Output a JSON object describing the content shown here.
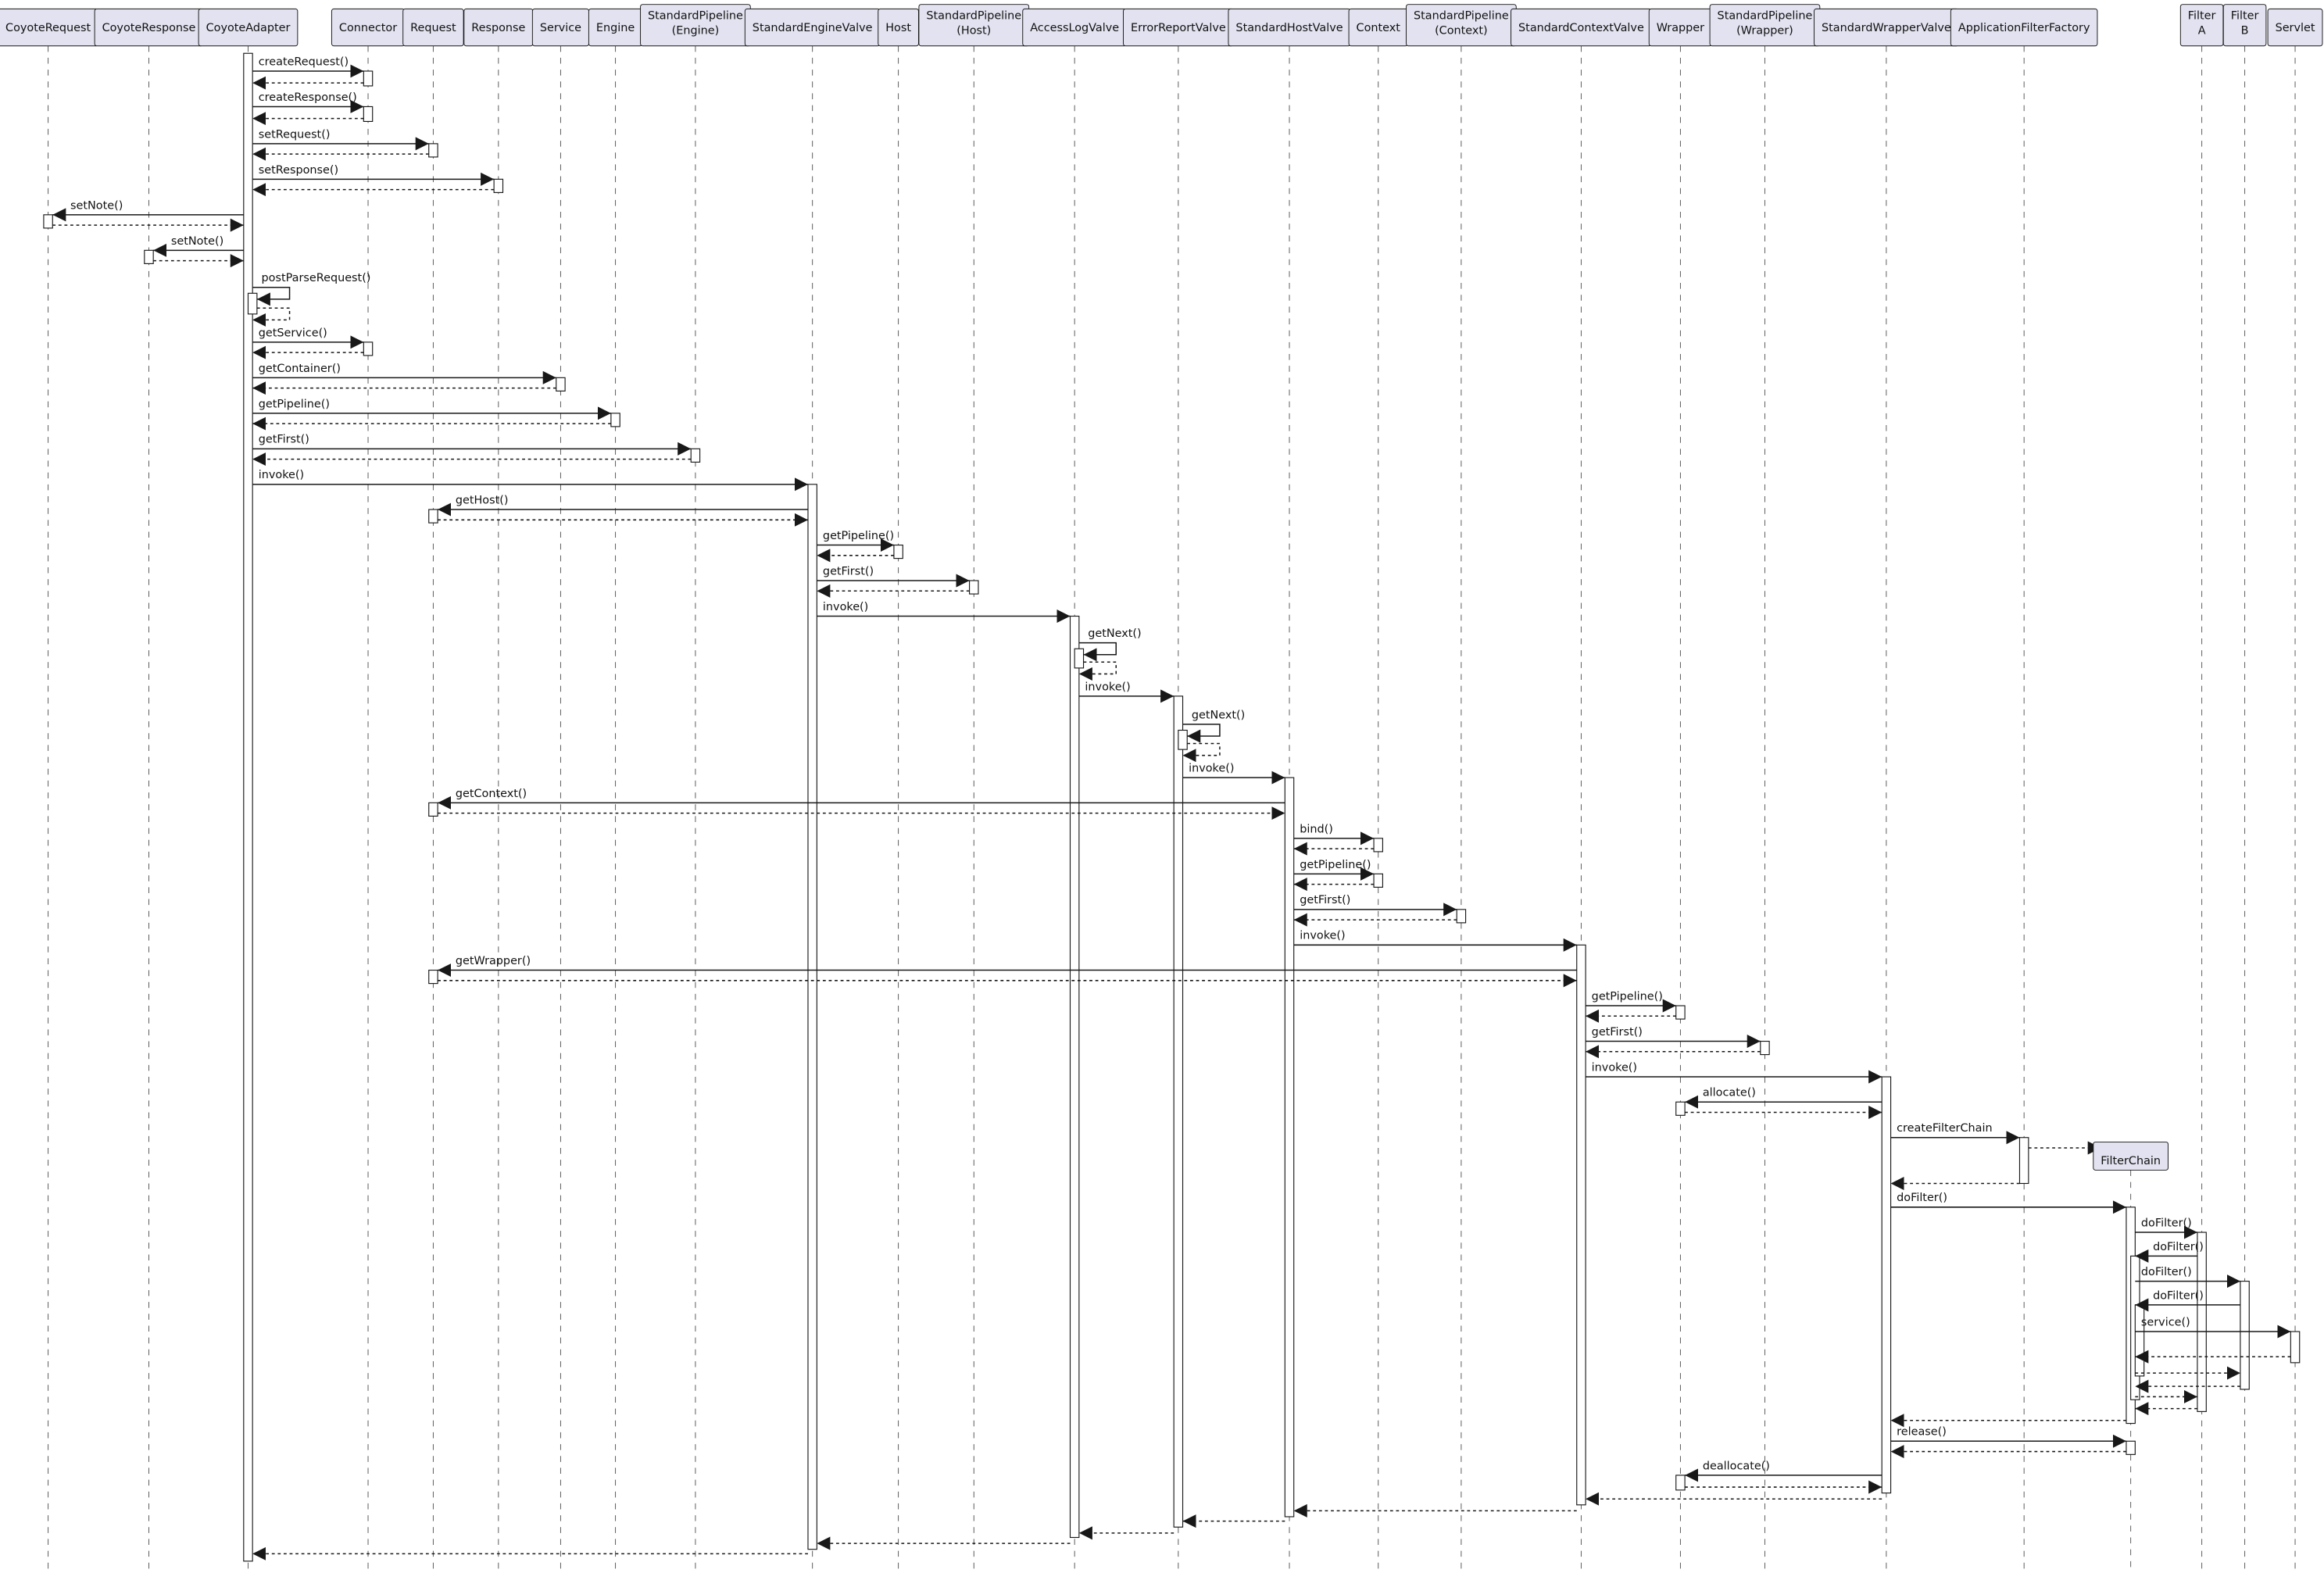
{
  "participants": [
    {
      "id": "CoyoteRequest",
      "lines": [
        "CoyoteRequest"
      ]
    },
    {
      "id": "CoyoteResponse",
      "lines": [
        "CoyoteResponse"
      ]
    },
    {
      "id": "CoyoteAdapter",
      "lines": [
        "CoyoteAdapter"
      ]
    },
    {
      "id": "Connector",
      "lines": [
        "Connector"
      ]
    },
    {
      "id": "Request",
      "lines": [
        "Request"
      ]
    },
    {
      "id": "Response",
      "lines": [
        "Response"
      ]
    },
    {
      "id": "Service",
      "lines": [
        "Service"
      ]
    },
    {
      "id": "Engine",
      "lines": [
        "Engine"
      ]
    },
    {
      "id": "SPEngine",
      "lines": [
        "StandardPipeline",
        "(Engine)"
      ]
    },
    {
      "id": "StandardEngineValve",
      "lines": [
        "StandardEngineValve"
      ]
    },
    {
      "id": "Host",
      "lines": [
        "Host"
      ]
    },
    {
      "id": "SPHost",
      "lines": [
        "StandardPipeline",
        "(Host)"
      ]
    },
    {
      "id": "AccessLogValve",
      "lines": [
        "AccessLogValve"
      ]
    },
    {
      "id": "ErrorReportValve",
      "lines": [
        "ErrorReportValve"
      ]
    },
    {
      "id": "StandardHostValve",
      "lines": [
        "StandardHostValve"
      ]
    },
    {
      "id": "Context",
      "lines": [
        "Context"
      ]
    },
    {
      "id": "SPContext",
      "lines": [
        "StandardPipeline",
        "(Context)"
      ]
    },
    {
      "id": "StandardContextValve",
      "lines": [
        "StandardContextValve"
      ]
    },
    {
      "id": "Wrapper",
      "lines": [
        "Wrapper"
      ]
    },
    {
      "id": "SPWrapper",
      "lines": [
        "StandardPipeline",
        "(Wrapper)"
      ]
    },
    {
      "id": "StandardWrapperValve",
      "lines": [
        "StandardWrapperValve"
      ]
    },
    {
      "id": "ApplicationFilterFactory",
      "lines": [
        "ApplicationFilterFactory"
      ]
    },
    {
      "id": "FilterA",
      "lines": [
        "Filter",
        "A"
      ]
    },
    {
      "id": "FilterB",
      "lines": [
        "Filter",
        "B"
      ]
    },
    {
      "id": "Servlet",
      "lines": [
        "Servlet"
      ]
    },
    {
      "id": "FilterChain",
      "lines": [
        "FilterChain"
      ],
      "created": true
    }
  ],
  "messages": [
    {
      "from": "CoyoteAdapter",
      "to": "Connector",
      "label": "createRequest()",
      "type": "call"
    },
    {
      "from": "Connector",
      "to": "CoyoteAdapter",
      "label": "",
      "type": "return"
    },
    {
      "from": "CoyoteAdapter",
      "to": "Connector",
      "label": "createResponse()",
      "type": "call"
    },
    {
      "from": "Connector",
      "to": "CoyoteAdapter",
      "label": "",
      "type": "return"
    },
    {
      "from": "CoyoteAdapter",
      "to": "Request",
      "label": "setRequest()",
      "type": "call"
    },
    {
      "from": "Request",
      "to": "CoyoteAdapter",
      "label": "",
      "type": "return"
    },
    {
      "from": "CoyoteAdapter",
      "to": "Response",
      "label": "setResponse()",
      "type": "call"
    },
    {
      "from": "Response",
      "to": "CoyoteAdapter",
      "label": "",
      "type": "return"
    },
    {
      "from": "CoyoteAdapter",
      "to": "CoyoteRequest",
      "label": "setNote()",
      "type": "call"
    },
    {
      "from": "CoyoteRequest",
      "to": "CoyoteAdapter",
      "label": "",
      "type": "return"
    },
    {
      "from": "CoyoteAdapter",
      "to": "CoyoteResponse",
      "label": "setNote()",
      "type": "call"
    },
    {
      "from": "CoyoteResponse",
      "to": "CoyoteAdapter",
      "label": "",
      "type": "return"
    },
    {
      "from": "CoyoteAdapter",
      "to": "CoyoteAdapter",
      "label": "postParseRequest()",
      "type": "self"
    },
    {
      "from": "CoyoteAdapter",
      "to": "Connector",
      "label": "getService()",
      "type": "call"
    },
    {
      "from": "Connector",
      "to": "CoyoteAdapter",
      "label": "",
      "type": "return"
    },
    {
      "from": "CoyoteAdapter",
      "to": "Service",
      "label": "getContainer()",
      "type": "call"
    },
    {
      "from": "Service",
      "to": "CoyoteAdapter",
      "label": "",
      "type": "return"
    },
    {
      "from": "CoyoteAdapter",
      "to": "Engine",
      "label": "getPipeline()",
      "type": "call"
    },
    {
      "from": "Engine",
      "to": "CoyoteAdapter",
      "label": "",
      "type": "return"
    },
    {
      "from": "CoyoteAdapter",
      "to": "SPEngine",
      "label": "getFirst()",
      "type": "call"
    },
    {
      "from": "SPEngine",
      "to": "CoyoteAdapter",
      "label": "",
      "type": "return"
    },
    {
      "from": "CoyoteAdapter",
      "to": "StandardEngineValve",
      "label": "invoke()",
      "type": "call"
    },
    {
      "from": "StandardEngineValve",
      "to": "Request",
      "label": "getHost()",
      "type": "call"
    },
    {
      "from": "Request",
      "to": "StandardEngineValve",
      "label": "",
      "type": "return"
    },
    {
      "from": "StandardEngineValve",
      "to": "Host",
      "label": "getPipeline()",
      "type": "call"
    },
    {
      "from": "Host",
      "to": "StandardEngineValve",
      "label": "",
      "type": "return"
    },
    {
      "from": "StandardEngineValve",
      "to": "SPHost",
      "label": "getFirst()",
      "type": "call"
    },
    {
      "from": "SPHost",
      "to": "StandardEngineValve",
      "label": "",
      "type": "return"
    },
    {
      "from": "StandardEngineValve",
      "to": "AccessLogValve",
      "label": "invoke()",
      "type": "call"
    },
    {
      "from": "AccessLogValve",
      "to": "AccessLogValve",
      "label": "getNext()",
      "type": "self"
    },
    {
      "from": "AccessLogValve",
      "to": "ErrorReportValve",
      "label": "invoke()",
      "type": "call"
    },
    {
      "from": "ErrorReportValve",
      "to": "ErrorReportValve",
      "label": "getNext()",
      "type": "self"
    },
    {
      "from": "ErrorReportValve",
      "to": "StandardHostValve",
      "label": "invoke()",
      "type": "call"
    },
    {
      "from": "StandardHostValve",
      "to": "Request",
      "label": "getContext()",
      "type": "call"
    },
    {
      "from": "Request",
      "to": "StandardHostValve",
      "label": "",
      "type": "return"
    },
    {
      "from": "StandardHostValve",
      "to": "Context",
      "label": "bind()",
      "type": "call"
    },
    {
      "from": "Context",
      "to": "StandardHostValve",
      "label": "",
      "type": "return"
    },
    {
      "from": "StandardHostValve",
      "to": "Context",
      "label": "getPipeline()",
      "type": "call"
    },
    {
      "from": "Context",
      "to": "StandardHostValve",
      "label": "",
      "type": "return"
    },
    {
      "from": "StandardHostValve",
      "to": "SPContext",
      "label": "getFirst()",
      "type": "call"
    },
    {
      "from": "SPContext",
      "to": "StandardHostValve",
      "label": "",
      "type": "return"
    },
    {
      "from": "StandardHostValve",
      "to": "StandardContextValve",
      "label": "invoke()",
      "type": "call"
    },
    {
      "from": "StandardContextValve",
      "to": "Request",
      "label": "getWrapper()",
      "type": "call"
    },
    {
      "from": "Request",
      "to": "StandardContextValve",
      "label": "",
      "type": "return"
    },
    {
      "from": "StandardContextValve",
      "to": "Wrapper",
      "label": "getPipeline()",
      "type": "call"
    },
    {
      "from": "Wrapper",
      "to": "StandardContextValve",
      "label": "",
      "type": "return"
    },
    {
      "from": "StandardContextValve",
      "to": "SPWrapper",
      "label": "getFirst()",
      "type": "call"
    },
    {
      "from": "SPWrapper",
      "to": "StandardContextValve",
      "label": "",
      "type": "return"
    },
    {
      "from": "StandardContextValve",
      "to": "StandardWrapperValve",
      "label": "invoke()",
      "type": "call"
    },
    {
      "from": "StandardWrapperValve",
      "to": "Wrapper",
      "label": "allocate()",
      "type": "call"
    },
    {
      "from": "Wrapper",
      "to": "StandardWrapperValve",
      "label": "",
      "type": "return"
    },
    {
      "from": "StandardWrapperValve",
      "to": "ApplicationFilterFactory",
      "label": "createFilterChain",
      "type": "call"
    },
    {
      "from": "ApplicationFilterFactory",
      "to": "FilterChain",
      "label": "",
      "type": "create"
    },
    {
      "from": "ApplicationFilterFactory",
      "to": "StandardWrapperValve",
      "label": "",
      "type": "return"
    },
    {
      "from": "StandardWrapperValve",
      "to": "FilterChain",
      "label": "doFilter()",
      "type": "call"
    },
    {
      "from": "FilterChain",
      "to": "FilterA",
      "label": "doFilter()",
      "type": "call"
    },
    {
      "from": "FilterA",
      "to": "FilterChain",
      "label": "doFilter()",
      "type": "call"
    },
    {
      "from": "FilterChain",
      "to": "FilterB",
      "label": "doFilter()",
      "type": "call"
    },
    {
      "from": "FilterB",
      "to": "FilterChain",
      "label": "doFilter()",
      "type": "call"
    },
    {
      "from": "FilterChain",
      "to": "Servlet",
      "label": "service()",
      "type": "call"
    },
    {
      "from": "Servlet",
      "to": "FilterChain",
      "label": "",
      "type": "return"
    },
    {
      "from": "FilterChain",
      "to": "FilterB",
      "label": "",
      "type": "return"
    },
    {
      "from": "FilterB",
      "to": "FilterChain",
      "label": "",
      "type": "return"
    },
    {
      "from": "FilterChain",
      "to": "FilterA",
      "label": "",
      "type": "return"
    },
    {
      "from": "FilterA",
      "to": "FilterChain",
      "label": "",
      "type": "return"
    },
    {
      "from": "FilterChain",
      "to": "StandardWrapperValve",
      "label": "",
      "type": "return"
    },
    {
      "from": "StandardWrapperValve",
      "to": "FilterChain",
      "label": "release()",
      "type": "call"
    },
    {
      "from": "FilterChain",
      "to": "StandardWrapperValve",
      "label": "",
      "type": "return"
    },
    {
      "from": "StandardWrapperValve",
      "to": "Wrapper",
      "label": "deallocate()",
      "type": "call"
    },
    {
      "from": "Wrapper",
      "to": "StandardWrapperValve",
      "label": "",
      "type": "return"
    },
    {
      "from": "StandardWrapperValve",
      "to": "StandardContextValve",
      "label": "",
      "type": "return"
    },
    {
      "from": "StandardContextValve",
      "to": "StandardHostValve",
      "label": "",
      "type": "return"
    },
    {
      "from": "StandardHostValve",
      "to": "ErrorReportValve",
      "label": "",
      "type": "return"
    },
    {
      "from": "ErrorReportValve",
      "to": "AccessLogValve",
      "label": "",
      "type": "return"
    },
    {
      "from": "AccessLogValve",
      "to": "StandardEngineValve",
      "label": "",
      "type": "return"
    },
    {
      "from": "StandardEngineValve",
      "to": "CoyoteAdapter",
      "label": "",
      "type": "return"
    }
  ],
  "colors": {
    "participant_fill": "#e2e2f0",
    "participant_border": "#181818",
    "line": "#181818"
  }
}
